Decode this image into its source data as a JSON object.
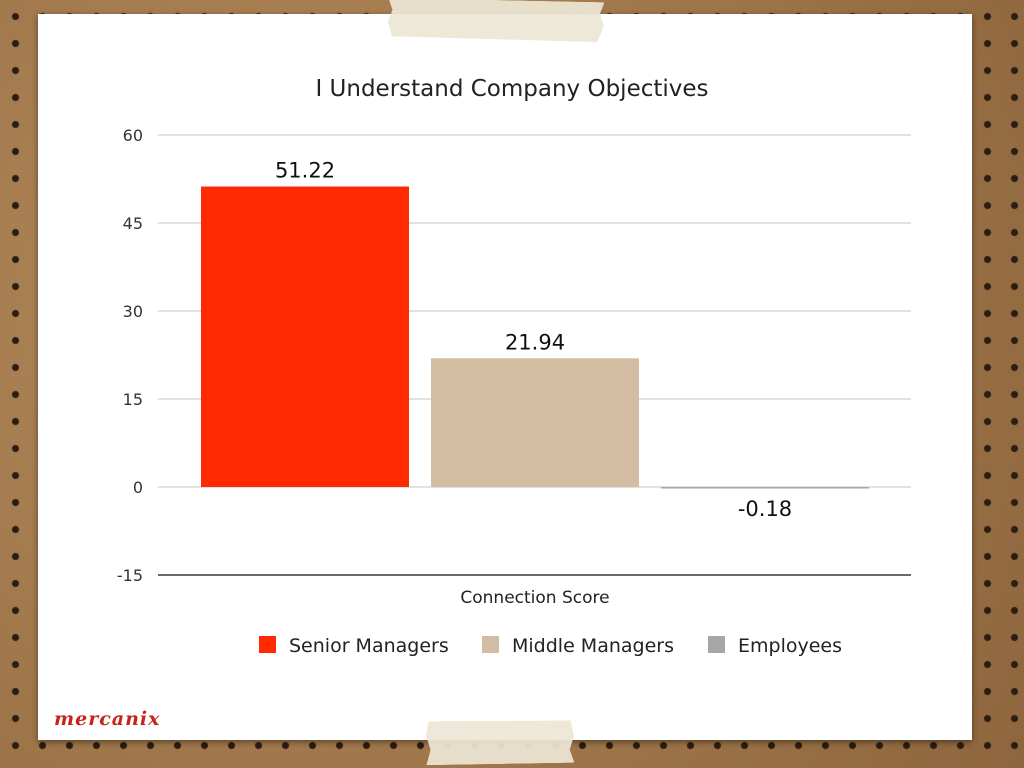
{
  "brand": {
    "logo_text": "mercanix",
    "logo_color": "#c8221c"
  },
  "chart_data": {
    "type": "bar",
    "title": "I Understand Company Objectives",
    "xlabel": "Connection Score",
    "ylabel": "",
    "categories": [
      "Connection Score"
    ],
    "ylim": [
      -15,
      60
    ],
    "yticks": [
      60,
      45,
      30,
      15,
      0,
      -15
    ],
    "grid": true,
    "legend_position": "bottom",
    "series": [
      {
        "name": "Senior Managers",
        "value": 51.22,
        "label": "51.22",
        "color": "#ff2a00"
      },
      {
        "name": "Middle Managers",
        "value": 21.94,
        "label": "21.94",
        "color": "#d3bda2"
      },
      {
        "name": "Employees",
        "value": -0.18,
        "label": "-0.18",
        "color": "#a6a6a6"
      }
    ]
  }
}
